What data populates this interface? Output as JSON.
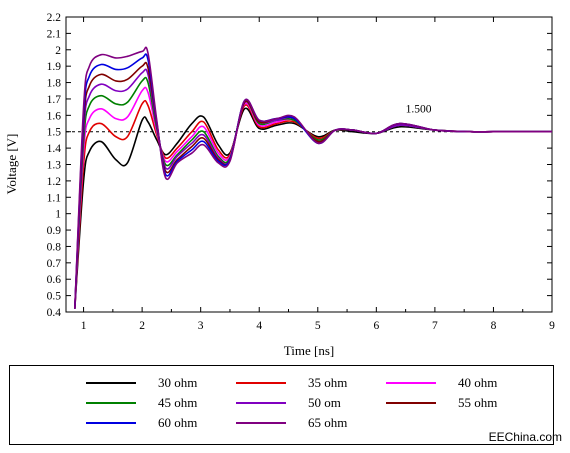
{
  "chart_data": {
    "type": "line",
    "xlabel": "Time [ns]",
    "ylabel": "Voltage [V]",
    "xlim": [
      0.7,
      9
    ],
    "ylim": [
      0.4,
      2.2
    ],
    "xticks": [
      "1",
      "2",
      "3",
      "4",
      "5",
      "6",
      "7",
      "8",
      "9"
    ],
    "yticks": [
      "0.4",
      "0.5",
      "0.6",
      "0.7",
      "0.8",
      "0.9",
      "1",
      "1.1",
      "1.2",
      "1.3",
      "1.4",
      "1.5",
      "1.6",
      "1.7",
      "1.8",
      "1.9",
      "2",
      "2.1",
      "2.2"
    ],
    "reference_line": {
      "y": 1.5,
      "label": "1.500",
      "style": "dashed"
    },
    "series": [
      {
        "name": "30 ohm",
        "color": "#000000",
        "x": [
          0.85,
          1.0,
          1.1,
          1.3,
          1.55,
          1.75,
          2.0,
          2.1,
          2.25,
          2.4,
          2.6,
          2.85,
          3.05,
          3.3,
          3.5,
          3.75,
          4.0,
          4.3,
          4.6,
          5.0,
          5.3,
          5.6,
          6.0,
          6.4,
          7.0,
          7.6,
          8.0,
          8.5,
          9.0
        ],
        "y": [
          0.42,
          1.2,
          1.38,
          1.44,
          1.33,
          1.31,
          1.57,
          1.56,
          1.45,
          1.36,
          1.43,
          1.55,
          1.59,
          1.42,
          1.37,
          1.64,
          1.52,
          1.54,
          1.55,
          1.47,
          1.51,
          1.5,
          1.49,
          1.53,
          1.51,
          1.5,
          1.5,
          1.5,
          1.5
        ]
      },
      {
        "name": "35 ohm",
        "color": "#e00000",
        "x": [
          0.85,
          1.0,
          1.1,
          1.3,
          1.55,
          1.75,
          2.0,
          2.1,
          2.25,
          2.4,
          2.6,
          2.85,
          3.05,
          3.3,
          3.5,
          3.75,
          4.0,
          4.3,
          4.6,
          5.0,
          5.3,
          5.6,
          6.0,
          6.4,
          7.0,
          7.6,
          8.0,
          8.5,
          9.0
        ],
        "y": [
          0.42,
          1.3,
          1.5,
          1.55,
          1.47,
          1.47,
          1.67,
          1.66,
          1.48,
          1.34,
          1.4,
          1.5,
          1.56,
          1.39,
          1.36,
          1.66,
          1.53,
          1.55,
          1.56,
          1.46,
          1.51,
          1.51,
          1.49,
          1.54,
          1.51,
          1.5,
          1.5,
          1.5,
          1.5
        ]
      },
      {
        "name": "40 ohm",
        "color": "#ff00ff",
        "x": [
          0.85,
          1.0,
          1.1,
          1.3,
          1.55,
          1.75,
          2.0,
          2.1,
          2.25,
          2.4,
          2.6,
          2.85,
          3.05,
          3.3,
          3.5,
          3.75,
          4.0,
          4.3,
          4.6,
          5.0,
          5.3,
          5.6,
          6.0,
          6.4,
          7.0,
          7.6,
          8.0,
          8.5,
          9.0
        ],
        "y": [
          0.42,
          1.38,
          1.58,
          1.64,
          1.58,
          1.59,
          1.75,
          1.74,
          1.5,
          1.32,
          1.38,
          1.47,
          1.53,
          1.37,
          1.35,
          1.67,
          1.54,
          1.56,
          1.57,
          1.45,
          1.51,
          1.51,
          1.49,
          1.54,
          1.51,
          1.5,
          1.5,
          1.5,
          1.5
        ]
      },
      {
        "name": "45 ohm",
        "color": "#008000",
        "x": [
          0.85,
          1.0,
          1.1,
          1.3,
          1.55,
          1.75,
          2.0,
          2.1,
          2.25,
          2.4,
          2.6,
          2.85,
          3.05,
          3.3,
          3.5,
          3.75,
          4.0,
          4.3,
          4.6,
          5.0,
          5.3,
          5.6,
          6.0,
          6.4,
          7.0,
          7.6,
          8.0,
          8.5,
          9.0
        ],
        "y": [
          0.42,
          1.44,
          1.66,
          1.72,
          1.67,
          1.68,
          1.81,
          1.8,
          1.52,
          1.3,
          1.36,
          1.45,
          1.5,
          1.35,
          1.34,
          1.68,
          1.55,
          1.57,
          1.57,
          1.45,
          1.51,
          1.51,
          1.49,
          1.54,
          1.51,
          1.5,
          1.5,
          1.5,
          1.5
        ]
      },
      {
        "name": "50 om",
        "color": "#8000c0",
        "x": [
          0.85,
          1.0,
          1.1,
          1.3,
          1.55,
          1.75,
          2.0,
          2.1,
          2.25,
          2.4,
          2.6,
          2.85,
          3.05,
          3.3,
          3.5,
          3.75,
          4.0,
          4.3,
          4.6,
          5.0,
          5.3,
          5.6,
          6.0,
          6.4,
          7.0,
          7.6,
          8.0,
          8.5,
          9.0
        ],
        "y": [
          0.42,
          1.5,
          1.72,
          1.79,
          1.75,
          1.76,
          1.86,
          1.85,
          1.54,
          1.28,
          1.35,
          1.43,
          1.48,
          1.34,
          1.33,
          1.68,
          1.56,
          1.57,
          1.58,
          1.44,
          1.51,
          1.51,
          1.49,
          1.54,
          1.51,
          1.5,
          1.5,
          1.5,
          1.5
        ]
      },
      {
        "name": "55 ohm",
        "color": "#800000",
        "x": [
          0.85,
          1.0,
          1.1,
          1.3,
          1.55,
          1.75,
          2.0,
          2.1,
          2.25,
          2.4,
          2.6,
          2.85,
          3.05,
          3.3,
          3.5,
          3.75,
          4.0,
          4.3,
          4.6,
          5.0,
          5.3,
          5.6,
          6.0,
          6.4,
          7.0,
          7.6,
          8.0,
          8.5,
          9.0
        ],
        "y": [
          0.42,
          1.55,
          1.78,
          1.85,
          1.81,
          1.82,
          1.9,
          1.89,
          1.55,
          1.26,
          1.33,
          1.41,
          1.46,
          1.33,
          1.33,
          1.68,
          1.56,
          1.58,
          1.58,
          1.44,
          1.51,
          1.51,
          1.49,
          1.55,
          1.51,
          1.5,
          1.5,
          1.5,
          1.5
        ]
      },
      {
        "name": "60 ohm",
        "color": "#0000e0",
        "x": [
          0.85,
          1.0,
          1.1,
          1.3,
          1.55,
          1.75,
          2.0,
          2.1,
          2.25,
          2.4,
          2.6,
          2.85,
          3.05,
          3.3,
          3.5,
          3.75,
          4.0,
          4.3,
          4.6,
          5.0,
          5.3,
          5.6,
          6.0,
          6.4,
          7.0,
          7.6,
          8.0,
          8.5,
          9.0
        ],
        "y": [
          0.42,
          1.6,
          1.84,
          1.91,
          1.88,
          1.89,
          1.95,
          1.94,
          1.56,
          1.24,
          1.32,
          1.39,
          1.44,
          1.32,
          1.33,
          1.69,
          1.57,
          1.58,
          1.58,
          1.43,
          1.51,
          1.51,
          1.49,
          1.55,
          1.51,
          1.5,
          1.5,
          1.5,
          1.5
        ]
      },
      {
        "name": "65 ohm",
        "color": "#800080",
        "x": [
          0.85,
          1.0,
          1.1,
          1.3,
          1.55,
          1.75,
          2.0,
          2.1,
          2.25,
          2.4,
          2.6,
          2.85,
          3.05,
          3.3,
          3.5,
          3.75,
          4.0,
          4.3,
          4.6,
          5.0,
          5.3,
          5.6,
          6.0,
          6.4,
          7.0,
          7.6,
          8.0,
          8.5,
          9.0
        ],
        "y": [
          0.42,
          1.65,
          1.9,
          1.97,
          1.95,
          1.96,
          1.99,
          1.98,
          1.57,
          1.22,
          1.31,
          1.37,
          1.42,
          1.31,
          1.32,
          1.69,
          1.57,
          1.58,
          1.59,
          1.43,
          1.51,
          1.51,
          1.49,
          1.55,
          1.51,
          1.5,
          1.5,
          1.5,
          1.5
        ]
      }
    ]
  },
  "watermark": "EEChina.com"
}
